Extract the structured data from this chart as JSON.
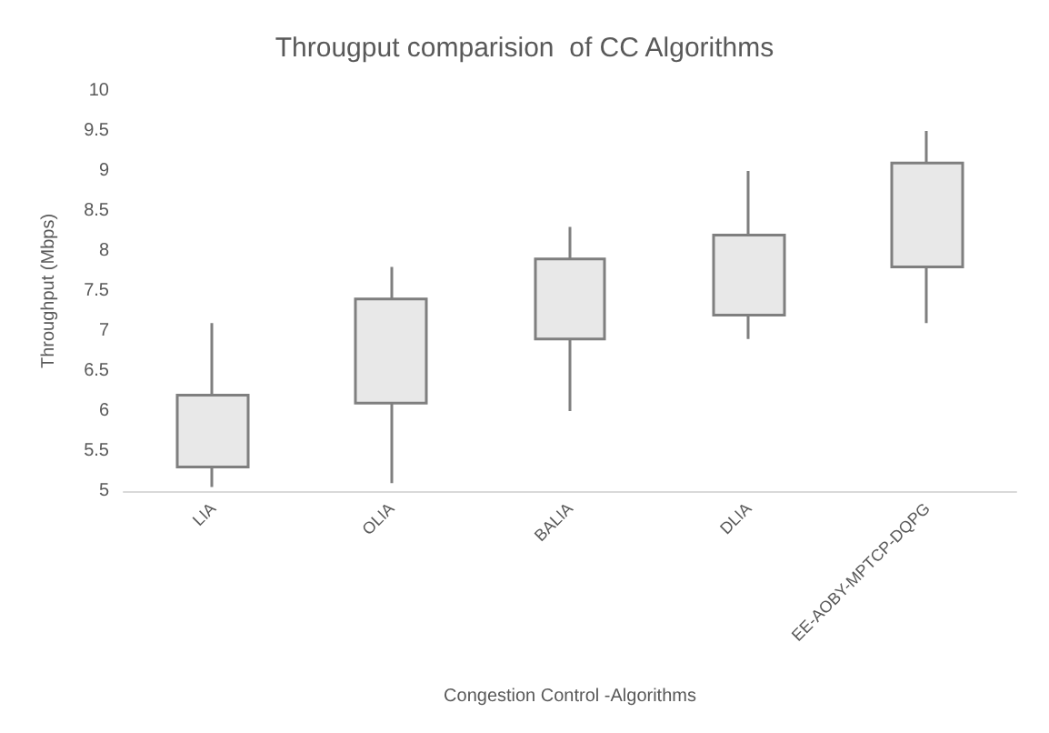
{
  "chart_data": {
    "type": "candlestick",
    "title": "Througput comparision  of CC Algorithms",
    "xlabel": "Congestion Control -Algorithms",
    "ylabel": "Throughput (Mbps)",
    "categories": [
      "LIA",
      "OLIA",
      "BALIA",
      "DLIA",
      "EE-AOBY-MPTCP-DQPG"
    ],
    "ohlc": [
      [
        5.3,
        7.1,
        5.05,
        6.2
      ],
      [
        6.1,
        7.8,
        5.1,
        7.4
      ],
      [
        6.9,
        8.3,
        6.0,
        7.9
      ],
      [
        7.2,
        9.0,
        6.9,
        8.2
      ],
      [
        7.8,
        9.5,
        7.1,
        9.1
      ]
    ],
    "color": "#e8e8e8",
    "ylim": [
      5,
      10
    ],
    "yticks": [
      5,
      5.5,
      6,
      6.5,
      7,
      7.5,
      8,
      8.5,
      9,
      9.5,
      10
    ],
    "grid": false
  }
}
